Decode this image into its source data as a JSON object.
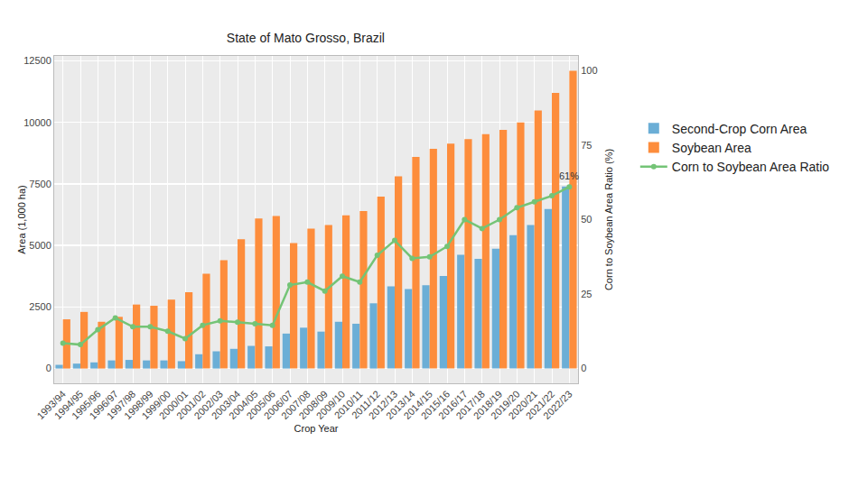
{
  "chart_data": {
    "type": "bar",
    "title": "State of Mato Grosso, Brazil",
    "x_label": "Crop Year",
    "y_label": "Area (1,000 ha)",
    "y2_label": "Corn to Soybean Area Ratio (%)",
    "categories": [
      "1993/94",
      "1994/95",
      "1995/96",
      "1996/97",
      "1997/98",
      "1998/99",
      "1999/00",
      "2000/01",
      "2001/02",
      "2002/03",
      "2003/04",
      "2004/05",
      "2005/06",
      "2006/07",
      "2007/08",
      "2008/09",
      "2009/10",
      "2010/11",
      "2011/12",
      "2012/13",
      "2013/14",
      "2014/15",
      "2015/16",
      "2016/17",
      "2017/18",
      "2018/19",
      "2019/20",
      "2020/21",
      "2021/22",
      "2022/23"
    ],
    "series": [
      {
        "name": "Second-Crop Corn Area",
        "type": "bar",
        "color": "#6baed6",
        "values": [
          150,
          200,
          250,
          330,
          350,
          330,
          330,
          300,
          580,
          700,
          800,
          920,
          900,
          1420,
          1660,
          1500,
          1900,
          1820,
          2650,
          3340,
          3230,
          3380,
          3760,
          4620,
          4460,
          4870,
          5420,
          5830,
          6480,
          7400
        ]
      },
      {
        "name": "Soybean Area",
        "type": "bar",
        "color": "#fd8d3c",
        "values": [
          2000,
          2300,
          1900,
          2100,
          2600,
          2550,
          2800,
          3100,
          3850,
          4400,
          5250,
          6100,
          6200,
          5100,
          5680,
          5830,
          6220,
          6400,
          6980,
          7810,
          8600,
          8930,
          9140,
          9320,
          9520,
          9700,
          10000,
          10480,
          11200,
          12100
        ]
      },
      {
        "name": "Corn to Soybean Area Ratio",
        "type": "line",
        "axis": "y2",
        "color": "#74c476",
        "marker": "circle",
        "line_style": "solid",
        "values": [
          8.5,
          8,
          13,
          17,
          14,
          14,
          12.5,
          10,
          14.5,
          16,
          15.5,
          15,
          14.5,
          28,
          29,
          26,
          31,
          29,
          38,
          43,
          37,
          37.5,
          41,
          50,
          47,
          50,
          54,
          56,
          58,
          61
        ]
      }
    ],
    "annotations": [
      {
        "text": "61%",
        "x": "2022/23",
        "y": 61,
        "axis": "y2"
      }
    ],
    "ylim": [
      -600,
      12700
    ],
    "yticks": [
      0,
      2500,
      5000,
      7500,
      10000,
      12500
    ],
    "y2lim": [
      -5,
      105
    ],
    "y2ticks": [
      0,
      25,
      50,
      75,
      100
    ],
    "grid": true,
    "legend": "right"
  }
}
